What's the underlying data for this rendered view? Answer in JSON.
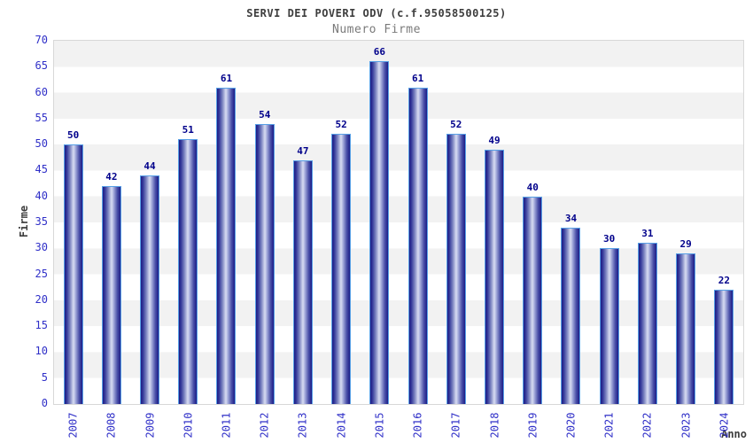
{
  "header": {
    "title": "SERVI DEI POVERI ODV (c.f.95058500125)",
    "subtitle": "Numero Firme"
  },
  "chart_data": {
    "type": "bar",
    "title": "SERVI DEI POVERI ODV (c.f.95058500125)",
    "subtitle": "Numero Firme",
    "categories": [
      "2007",
      "2008",
      "2009",
      "2010",
      "2011",
      "2012",
      "2013",
      "2014",
      "2015",
      "2016",
      "2017",
      "2018",
      "2019",
      "2020",
      "2021",
      "2022",
      "2023",
      "2024"
    ],
    "values": [
      50,
      42,
      44,
      51,
      61,
      54,
      47,
      52,
      66,
      61,
      52,
      49,
      40,
      34,
      30,
      31,
      29,
      22
    ],
    "xlabel": "Anno",
    "ylabel": "Firme",
    "ylim": [
      0,
      70
    ],
    "ytick_step": 5,
    "ytick_labels": [
      "0",
      "5",
      "10",
      "15",
      "20",
      "25",
      "30",
      "35",
      "40",
      "45",
      "50",
      "55",
      "60",
      "65",
      "70"
    ],
    "grid": "alternating horizontal bands every 5 units",
    "legend": "none",
    "bar_labels_shown": true,
    "x_tick_rotation_deg": -90,
    "colors": {
      "bar_edge": "#1c1c86",
      "bar_center_highlight": "#d8dcf2",
      "bar_border": "#58a0e6",
      "tick_label": "#3030c8",
      "value_label": "#00008b",
      "axis_title": "#3d3d3d",
      "title": "#3d3d3d",
      "subtitle": "#7a7a7a",
      "band_gray": "#f2f2f2",
      "band_white": "#ffffff",
      "plot_border": "#d8d8d8"
    }
  }
}
